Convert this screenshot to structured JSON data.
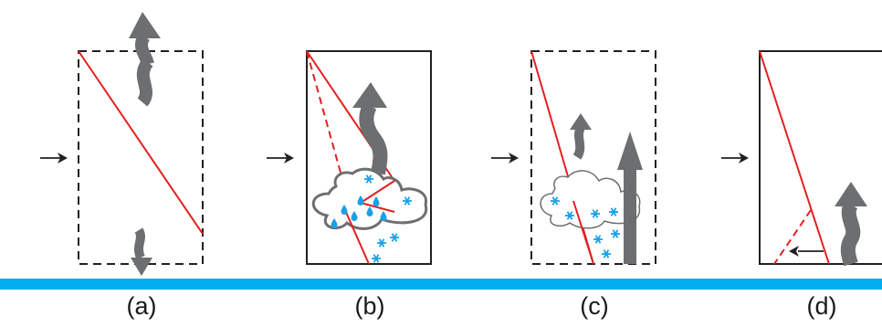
{
  "colors": {
    "ground": "#00aeef",
    "red_line": "#e32020",
    "plume": "#6d6e70",
    "snow": "#1aa0e8",
    "rain": "#1aa0e8",
    "frame": "#231f20"
  },
  "panels": [
    {
      "label": "(a)",
      "frame_style": "dashed",
      "elements": [
        "inflow-arrow",
        "diagonal-line",
        "updraft-arrow",
        "downdraft-arrow"
      ]
    },
    {
      "label": "(b)",
      "frame_style": "solid",
      "elements": [
        "inflow-arrow",
        "diagonal-line",
        "dashed-line",
        "updraft-arrow",
        "cloud",
        "rain",
        "snow"
      ]
    },
    {
      "label": "(c)",
      "frame_style": "dashed",
      "elements": [
        "inflow-arrow",
        "diagonal-line",
        "small-updraft-arrow",
        "tall-updraft-arrow",
        "cloud",
        "snow"
      ]
    },
    {
      "label": "(d)",
      "frame_style": "solid",
      "elements": [
        "inflow-arrow",
        "diagonal-line",
        "dashed-line",
        "updraft-arrow",
        "retreat-arrow"
      ]
    }
  ]
}
